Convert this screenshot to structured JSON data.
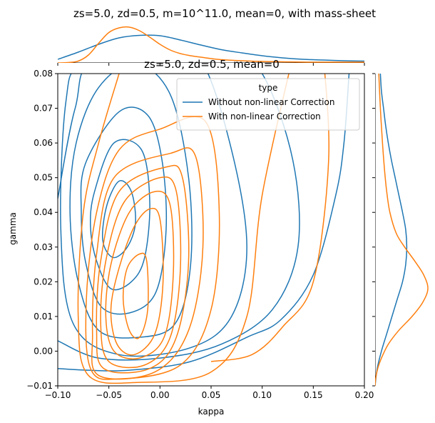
{
  "chart_data": {
    "type": "line",
    "subtype": "kde-jointplot",
    "title": "zs=5.0, zd=0.5, m=10^11.0, mean=0, with mass-sheet",
    "overlapping_title": "zs=5.0, zd=0.5, mean=0",
    "xlabel": "kappa",
    "ylabel": "gamma",
    "xlim": [
      -0.1,
      0.2
    ],
    "ylim": [
      -0.01,
      0.08
    ],
    "x_ticks": [
      -0.1,
      -0.05,
      0.0,
      0.05,
      0.1,
      0.15,
      0.2
    ],
    "x_tick_labels": [
      "−0.10",
      "−0.05",
      "0.00",
      "0.05",
      "0.10",
      "0.15",
      "0.20"
    ],
    "y_ticks": [
      -0.01,
      0.0,
      0.01,
      0.02,
      0.03,
      0.04,
      0.05,
      0.06,
      0.07,
      0.08
    ],
    "y_tick_labels": [
      "−0.01",
      "0.00",
      "0.01",
      "0.02",
      "0.03",
      "0.04",
      "0.05",
      "0.06",
      "0.07",
      "0.08"
    ],
    "legend": {
      "title": "type",
      "position": "top-right",
      "entries": [
        "Without non-linear Correction",
        "With non-linear Correction"
      ]
    },
    "colors": {
      "without": "#1f77b4",
      "with": "#ff7f0e"
    },
    "series": [
      {
        "name": "Without non-linear Correction",
        "joint_contours": [
          [
            [
              -0.052,
              0.042
            ],
            [
              -0.04,
              0.049
            ],
            [
              -0.028,
              0.046
            ],
            [
              -0.024,
              0.037
            ],
            [
              -0.032,
              0.03
            ],
            [
              -0.046,
              0.027
            ],
            [
              -0.056,
              0.032
            ],
            [
              -0.052,
              0.042
            ]
          ],
          [
            [
              -0.064,
              0.046
            ],
            [
              -0.045,
              0.06
            ],
            [
              -0.018,
              0.058
            ],
            [
              -0.01,
              0.043
            ],
            [
              -0.015,
              0.027
            ],
            [
              -0.028,
              0.02
            ],
            [
              -0.048,
              0.018
            ],
            [
              -0.062,
              0.026
            ],
            [
              -0.068,
              0.036
            ],
            [
              -0.064,
              0.046
            ]
          ],
          [
            [
              -0.073,
              0.054
            ],
            [
              -0.04,
              0.069
            ],
            [
              -0.012,
              0.068
            ],
            [
              0.002,
              0.055
            ],
            [
              0.006,
              0.035
            ],
            [
              -0.004,
              0.017
            ],
            [
              -0.03,
              0.011
            ],
            [
              -0.058,
              0.013
            ],
            [
              -0.073,
              0.026
            ],
            [
              -0.077,
              0.04
            ],
            [
              -0.073,
              0.054
            ]
          ],
          [
            [
              -0.082,
              0.06
            ],
            [
              -0.06,
              0.076
            ],
            [
              -0.024,
              0.083
            ],
            [
              0.01,
              0.074
            ],
            [
              0.028,
              0.05
            ],
            [
              0.03,
              0.025
            ],
            [
              0.015,
              0.008
            ],
            [
              -0.02,
              0.004
            ],
            [
              -0.06,
              0.006
            ],
            [
              -0.08,
              0.02
            ],
            [
              -0.088,
              0.04
            ],
            [
              -0.082,
              0.06
            ]
          ],
          [
            [
              -0.092,
              0.072
            ],
            [
              -0.075,
              0.083
            ],
            [
              0.0,
              0.09
            ],
            [
              0.04,
              0.084
            ],
            [
              0.07,
              0.058
            ],
            [
              0.085,
              0.03
            ],
            [
              0.07,
              0.01
            ],
            [
              0.03,
              0.001
            ],
            [
              -0.04,
              -0.001
            ],
            [
              -0.085,
              0.008
            ],
            [
              -0.097,
              0.035
            ],
            [
              -0.092,
              0.072
            ]
          ],
          [
            [
              -0.1,
              0.044
            ],
            [
              -0.083,
              0.07
            ],
            [
              -0.06,
              0.085
            ],
            [
              0.06,
              0.09
            ],
            [
              0.1,
              0.08
            ],
            [
              0.13,
              0.055
            ],
            [
              0.135,
              0.03
            ],
            [
              0.11,
              0.012
            ],
            [
              0.06,
              0.002
            ],
            [
              0.0,
              -0.002
            ],
            [
              -0.06,
              -0.002
            ],
            [
              -0.1,
              0.003
            ]
          ],
          [
            [
              -0.1,
              -0.005
            ],
            [
              -0.07,
              -0.0055
            ],
            [
              -0.03,
              -0.0055
            ],
            [
              0.03,
              -0.003
            ],
            [
              0.085,
              0.004
            ],
            [
              0.118,
              0.009
            ],
            [
              0.15,
              0.022
            ],
            [
              0.172,
              0.045
            ],
            [
              0.18,
              0.06
            ],
            [
              0.185,
              0.08
            ]
          ]
        ],
        "marginal_x": [
          [
            -0.1,
            0.1
          ],
          [
            -0.08,
            0.3
          ],
          [
            -0.06,
            0.52
          ],
          [
            -0.04,
            0.7
          ],
          [
            -0.02,
            0.77
          ],
          [
            0.0,
            0.76
          ],
          [
            0.02,
            0.64
          ],
          [
            0.04,
            0.5
          ],
          [
            0.06,
            0.37
          ],
          [
            0.08,
            0.28
          ],
          [
            0.1,
            0.2
          ],
          [
            0.12,
            0.14
          ],
          [
            0.14,
            0.1
          ],
          [
            0.16,
            0.08
          ],
          [
            0.18,
            0.06
          ],
          [
            0.2,
            0.05
          ]
        ],
        "marginal_y": [
          [
            -0.01,
            0.0
          ],
          [
            -0.005,
            0.04
          ],
          [
            0.0,
            0.12
          ],
          [
            0.005,
            0.22
          ],
          [
            0.01,
            0.32
          ],
          [
            0.015,
            0.42
          ],
          [
            0.02,
            0.52
          ],
          [
            0.025,
            0.58
          ],
          [
            0.03,
            0.6
          ],
          [
            0.035,
            0.58
          ],
          [
            0.04,
            0.52
          ],
          [
            0.045,
            0.45
          ],
          [
            0.05,
            0.38
          ],
          [
            0.055,
            0.31
          ],
          [
            0.06,
            0.25
          ],
          [
            0.065,
            0.2
          ],
          [
            0.07,
            0.16
          ],
          [
            0.075,
            0.12
          ],
          [
            0.08,
            0.1
          ]
        ]
      },
      {
        "name": "With non-linear Correction",
        "joint_contours": [
          [
            [
              -0.02,
              0.028
            ],
            [
              -0.013,
              0.026
            ],
            [
              -0.012,
              0.012
            ],
            [
              -0.02,
              0.004
            ],
            [
              -0.03,
              0.006
            ],
            [
              -0.036,
              0.015
            ],
            [
              -0.032,
              0.024
            ],
            [
              -0.02,
              0.028
            ]
          ],
          [
            [
              -0.01,
              0.041
            ],
            [
              0.0,
              0.038
            ],
            [
              0.003,
              0.02
            ],
            [
              -0.005,
              0.005
            ],
            [
              -0.025,
              -0.001
            ],
            [
              -0.042,
              0.002
            ],
            [
              -0.048,
              0.012
            ],
            [
              -0.04,
              0.024
            ],
            [
              -0.025,
              0.036
            ],
            [
              -0.01,
              0.041
            ]
          ],
          [
            [
              -0.005,
              0.046
            ],
            [
              0.01,
              0.042
            ],
            [
              0.013,
              0.022
            ],
            [
              0.004,
              0.004
            ],
            [
              -0.02,
              -0.002
            ],
            [
              -0.045,
              0.0
            ],
            [
              -0.053,
              0.01
            ],
            [
              -0.048,
              0.025
            ],
            [
              -0.03,
              0.04
            ],
            [
              -0.005,
              0.046
            ]
          ],
          [
            [
              0.0,
              0.05
            ],
            [
              0.016,
              0.046
            ],
            [
              0.02,
              0.024
            ],
            [
              0.01,
              0.004
            ],
            [
              -0.015,
              -0.004
            ],
            [
              -0.05,
              -0.003
            ],
            [
              -0.058,
              0.008
            ],
            [
              -0.053,
              0.026
            ],
            [
              -0.035,
              0.043
            ],
            [
              0.0,
              0.05
            ]
          ],
          [
            [
              0.005,
              0.053
            ],
            [
              0.022,
              0.05
            ],
            [
              0.028,
              0.026
            ],
            [
              0.016,
              0.004
            ],
            [
              -0.01,
              -0.005
            ],
            [
              -0.055,
              -0.005
            ],
            [
              -0.062,
              0.006
            ],
            [
              -0.058,
              0.026
            ],
            [
              -0.04,
              0.046
            ],
            [
              0.005,
              0.053
            ]
          ],
          [
            [
              0.01,
              0.057
            ],
            [
              0.035,
              0.056
            ],
            [
              0.042,
              0.03
            ],
            [
              0.028,
              0.006
            ],
            [
              -0.005,
              -0.006
            ],
            [
              -0.06,
              -0.007
            ],
            [
              -0.066,
              0.005
            ],
            [
              -0.062,
              0.028
            ],
            [
              -0.045,
              0.05
            ],
            [
              0.01,
              0.057
            ]
          ],
          [
            [
              0.0,
              0.064
            ],
            [
              0.045,
              0.066
            ],
            [
              0.058,
              0.04
            ],
            [
              0.05,
              0.012
            ],
            [
              0.02,
              -0.004
            ],
            [
              -0.04,
              -0.008
            ],
            [
              -0.068,
              -0.005
            ],
            [
              -0.072,
              0.015
            ],
            [
              -0.062,
              0.04
            ],
            [
              -0.04,
              0.058
            ],
            [
              0.0,
              0.064
            ]
          ],
          [
            [
              0.13,
              0.085
            ],
            [
              0.1,
              0.045
            ],
            [
              0.085,
              0.01
            ],
            [
              0.05,
              -0.006
            ],
            [
              -0.02,
              -0.009
            ],
            [
              -0.07,
              -0.007
            ],
            [
              -0.08,
              0.01
            ],
            [
              -0.075,
              0.04
            ],
            [
              -0.06,
              0.06
            ],
            [
              -0.04,
              0.08
            ]
          ],
          [
            [
              0.16,
              0.085
            ],
            [
              0.165,
              0.055
            ],
            [
              0.15,
              0.02
            ],
            [
              0.12,
              0.007
            ],
            [
              0.09,
              -0.001
            ],
            [
              0.05,
              -0.003
            ]
          ]
        ],
        "marginal_x": [
          [
            -0.1,
            0.0
          ],
          [
            -0.09,
            0.01
          ],
          [
            -0.08,
            0.05
          ],
          [
            -0.07,
            0.22
          ],
          [
            -0.06,
            0.55
          ],
          [
            -0.05,
            0.85
          ],
          [
            -0.04,
            0.98
          ],
          [
            -0.03,
            1.0
          ],
          [
            -0.02,
            0.9
          ],
          [
            -0.01,
            0.72
          ],
          [
            0.0,
            0.52
          ],
          [
            0.01,
            0.36
          ],
          [
            0.02,
            0.26
          ],
          [
            0.03,
            0.2
          ],
          [
            0.04,
            0.16
          ],
          [
            0.05,
            0.12
          ],
          [
            0.06,
            0.09
          ],
          [
            0.08,
            0.06
          ],
          [
            0.1,
            0.04
          ],
          [
            0.12,
            0.03
          ],
          [
            0.15,
            0.02
          ],
          [
            0.2,
            0.02
          ]
        ],
        "marginal_y": [
          [
            -0.01,
            0.0
          ],
          [
            -0.008,
            0.01
          ],
          [
            -0.005,
            0.05
          ],
          [
            -0.002,
            0.12
          ],
          [
            0.002,
            0.25
          ],
          [
            0.006,
            0.45
          ],
          [
            0.01,
            0.7
          ],
          [
            0.014,
            0.9
          ],
          [
            0.018,
            1.0
          ],
          [
            0.022,
            0.92
          ],
          [
            0.026,
            0.75
          ],
          [
            0.03,
            0.56
          ],
          [
            0.034,
            0.4
          ],
          [
            0.04,
            0.28
          ],
          [
            0.046,
            0.22
          ],
          [
            0.052,
            0.18
          ],
          [
            0.06,
            0.14
          ],
          [
            0.07,
            0.1
          ],
          [
            0.08,
            0.07
          ]
        ]
      }
    ]
  }
}
